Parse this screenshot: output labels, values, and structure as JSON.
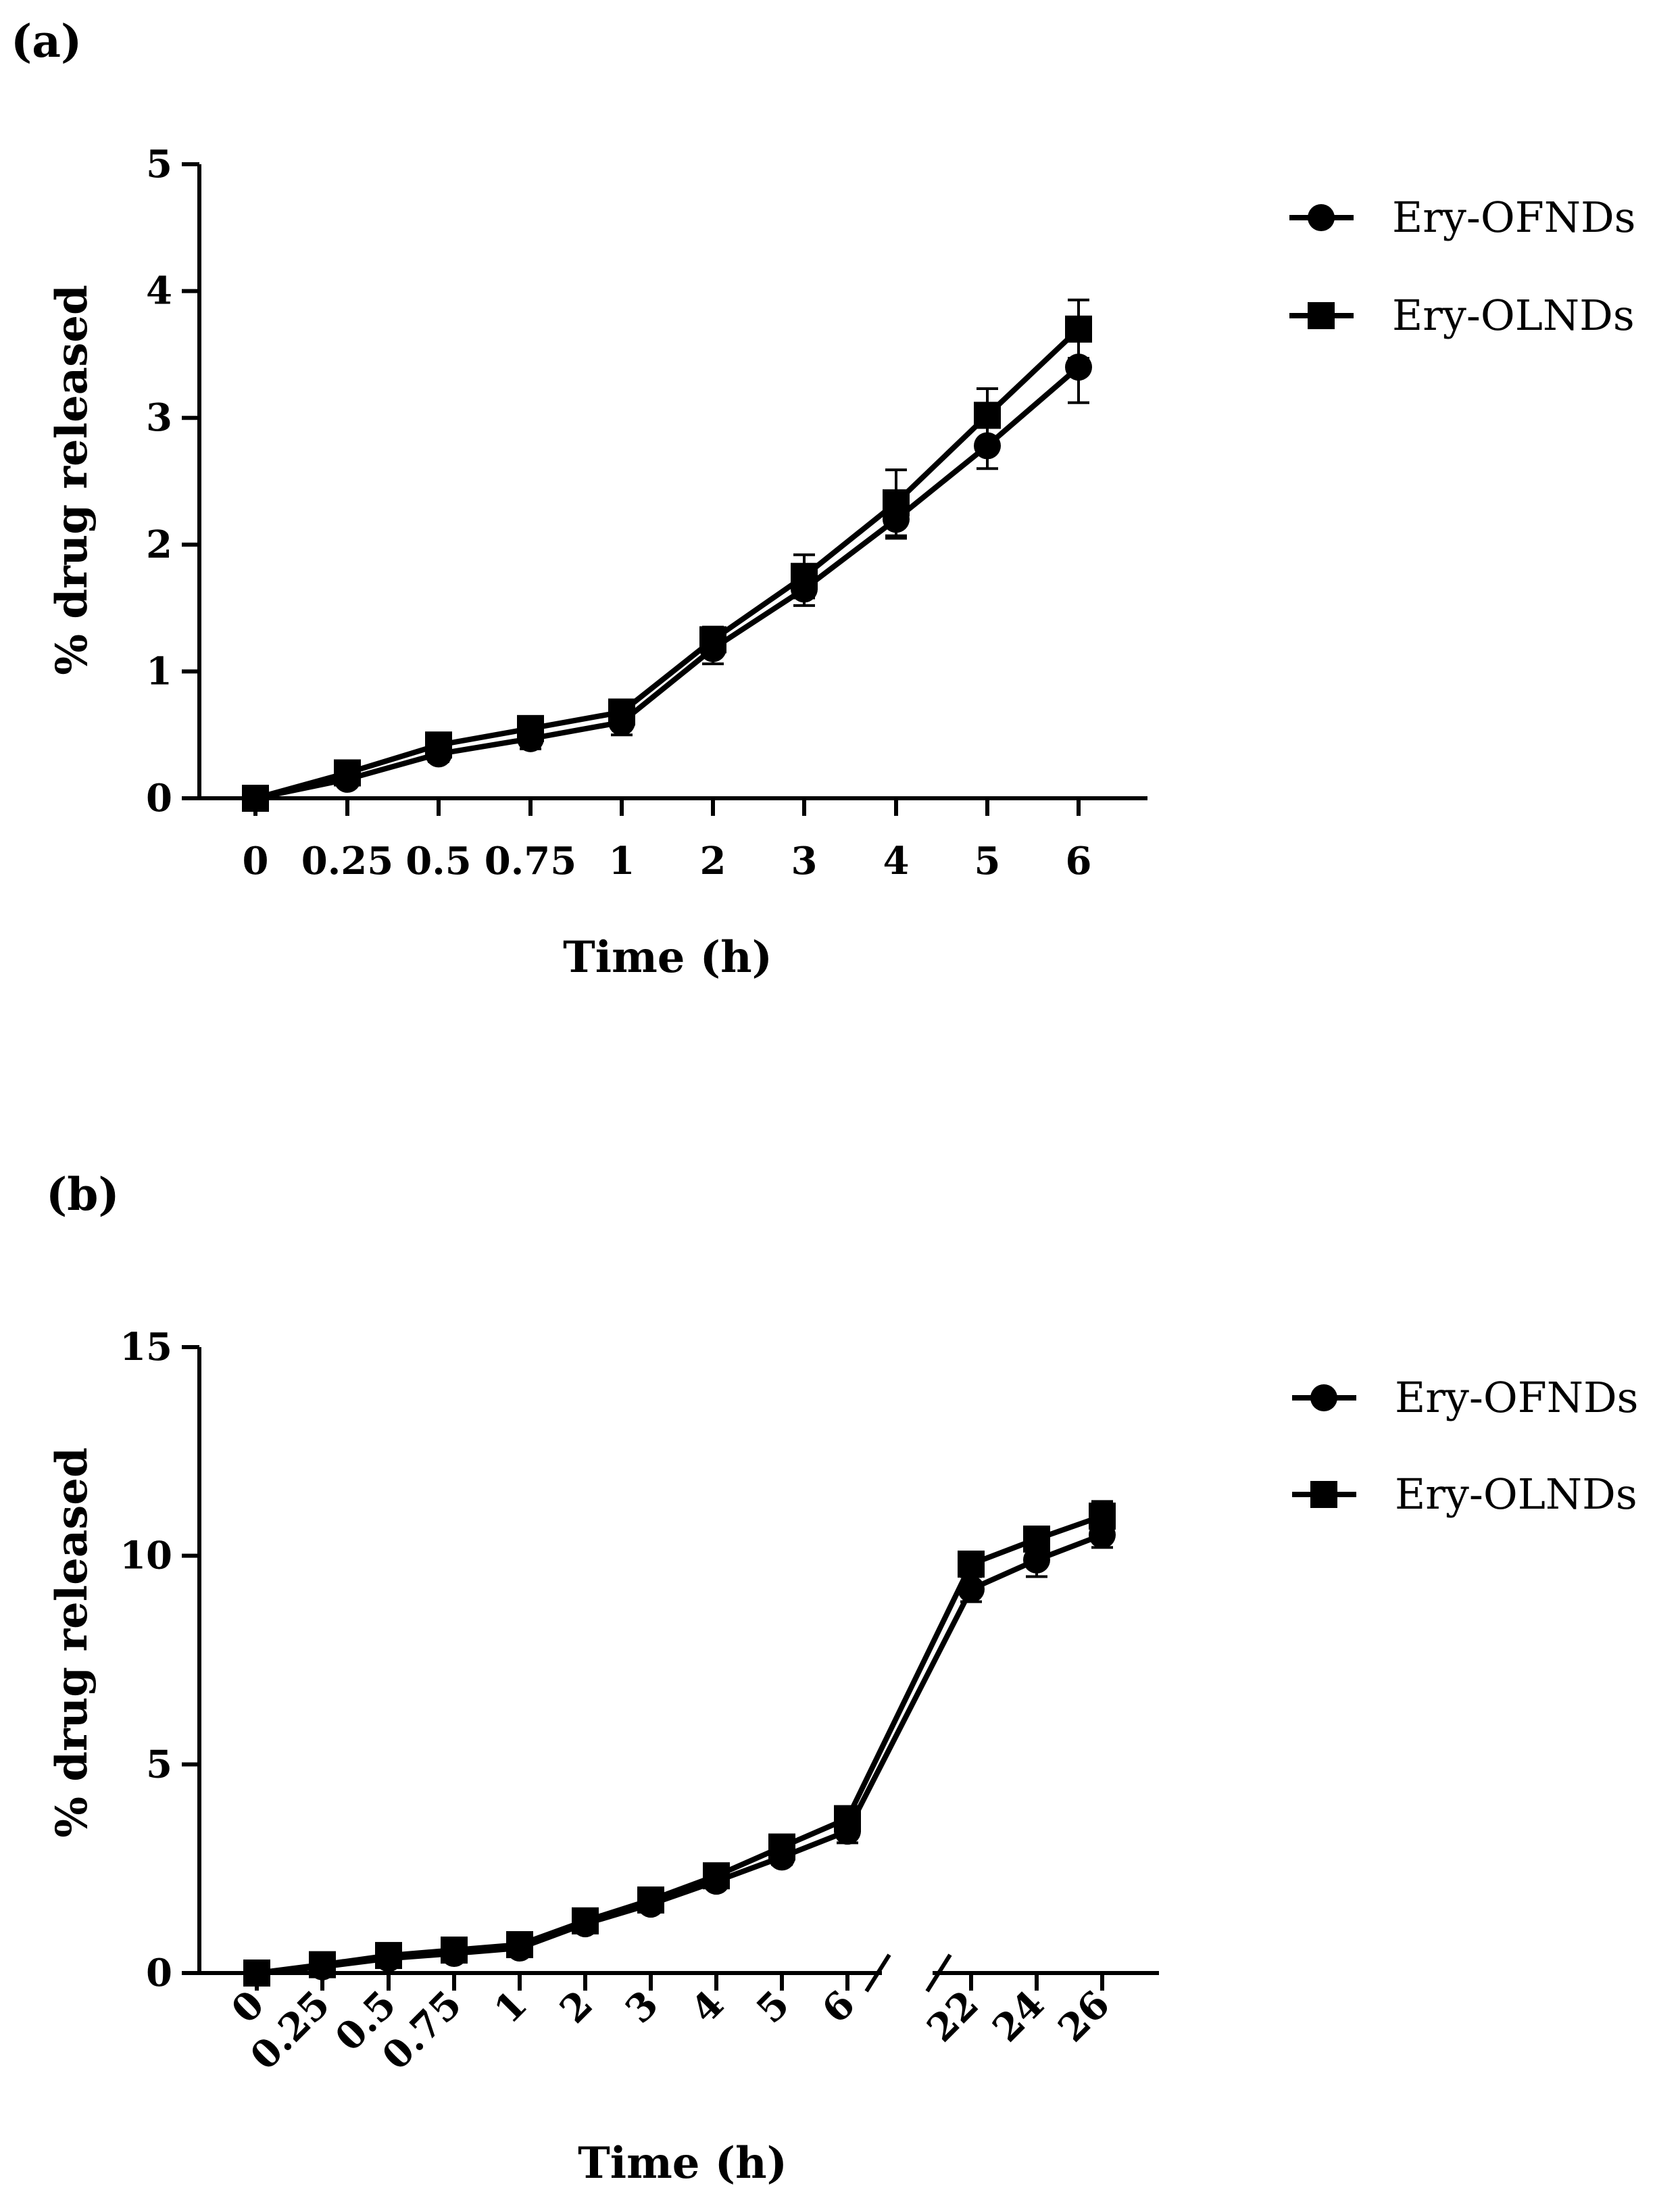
{
  "chart_data": [
    {
      "panel_label": "(a)",
      "type": "line",
      "xlabel": "Time (h)",
      "ylabel": "% drug released",
      "ylim": [
        0,
        5
      ],
      "yticks": [
        "0",
        "1",
        "2",
        "3",
        "4",
        "5"
      ],
      "categories": [
        "0",
        "0.25",
        "0.5",
        "0.75",
        "1",
        "2",
        "3",
        "4",
        "5",
        "6"
      ],
      "series": [
        {
          "name": "Ery-OFNDs",
          "marker": "circle",
          "values": [
            0,
            0.15,
            0.35,
            0.47,
            0.6,
            1.18,
            1.65,
            2.2,
            2.78,
            3.4
          ],
          "errors": [
            0,
            0.05,
            0.06,
            0.08,
            0.1,
            0.12,
            0.13,
            0.15,
            0.18,
            0.28
          ]
        },
        {
          "name": "Ery-OLNDs",
          "marker": "square",
          "values": [
            0,
            0.2,
            0.42,
            0.55,
            0.68,
            1.25,
            1.75,
            2.33,
            3.02,
            3.7
          ],
          "errors": [
            0,
            0.04,
            0.05,
            0.06,
            0.07,
            0.1,
            0.17,
            0.26,
            0.21,
            0.23
          ]
        }
      ],
      "legend_position": "right"
    },
    {
      "panel_label": "(b)",
      "type": "line",
      "xlabel": "Time (h)",
      "ylabel": "% drug released",
      "ylim": [
        0,
        15
      ],
      "yticks": [
        "0",
        "5",
        "10",
        "15"
      ],
      "categories": [
        "0",
        "0.25",
        "0.5",
        "0.75",
        "1",
        "2",
        "3",
        "4",
        "5",
        "6",
        "22",
        "24",
        "26"
      ],
      "axis_break_after": "6",
      "series": [
        {
          "name": "Ery-OFNDs",
          "marker": "circle",
          "values": [
            0,
            0.15,
            0.35,
            0.47,
            0.6,
            1.18,
            1.65,
            2.2,
            2.78,
            3.4,
            9.2,
            9.9,
            10.5
          ],
          "errors": [
            0,
            0.05,
            0.06,
            0.08,
            0.1,
            0.12,
            0.13,
            0.15,
            0.18,
            0.28,
            0.3,
            0.4,
            0.3
          ]
        },
        {
          "name": "Ery-OLNDs",
          "marker": "square",
          "values": [
            0,
            0.2,
            0.42,
            0.55,
            0.68,
            1.25,
            1.75,
            2.33,
            3.02,
            3.7,
            9.8,
            10.4,
            10.95
          ],
          "errors": [
            0,
            0.04,
            0.05,
            0.06,
            0.07,
            0.1,
            0.17,
            0.26,
            0.21,
            0.23,
            0.2,
            0.2,
            0.35
          ]
        }
      ],
      "legend_position": "right"
    }
  ]
}
